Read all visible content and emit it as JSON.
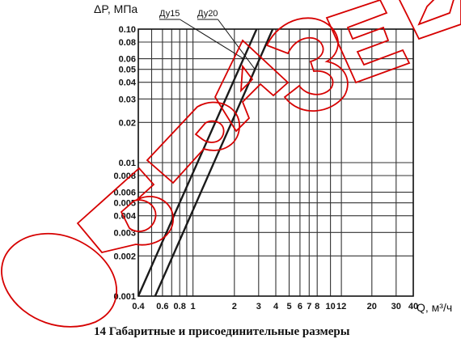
{
  "chart_data": {
    "type": "line",
    "title": "",
    "ylabel": "ΔP, МПа",
    "xlabel": "Q, м³/ч",
    "xscale": "log",
    "yscale": "log",
    "xlim": [
      0.4,
      40
    ],
    "ylim": [
      0.001,
      0.1
    ],
    "grid": true,
    "xticks": [
      {
        "v": 0.4,
        "label": "0.4"
      },
      {
        "v": 0.5,
        "label": ""
      },
      {
        "v": 0.6,
        "label": "0.6"
      },
      {
        "v": 0.7,
        "label": ""
      },
      {
        "v": 0.8,
        "label": "0.8"
      },
      {
        "v": 0.9,
        "label": ""
      },
      {
        "v": 1,
        "label": "1"
      },
      {
        "v": 2,
        "label": "2"
      },
      {
        "v": 3,
        "label": "3"
      },
      {
        "v": 4,
        "label": "4"
      },
      {
        "v": 5,
        "label": "5"
      },
      {
        "v": 6,
        "label": "6"
      },
      {
        "v": 7,
        "label": "7"
      },
      {
        "v": 8,
        "label": "8"
      },
      {
        "v": 10,
        "label": "10"
      },
      {
        "v": 12,
        "label": "12"
      },
      {
        "v": 20,
        "label": "20"
      },
      {
        "v": 30,
        "label": "30"
      },
      {
        "v": 40,
        "label": "40"
      }
    ],
    "yticks": [
      {
        "v": 0.001,
        "label": "0.001"
      },
      {
        "v": 0.002,
        "label": "0.002"
      },
      {
        "v": 0.003,
        "label": "0.003"
      },
      {
        "v": 0.004,
        "label": "0.004"
      },
      {
        "v": 0.005,
        "label": "0.005"
      },
      {
        "v": 0.006,
        "label": "0.006"
      },
      {
        "v": 0.008,
        "label": "0.008"
      },
      {
        "v": 0.01,
        "label": "0.01"
      },
      {
        "v": 0.02,
        "label": "0.02"
      },
      {
        "v": 0.03,
        "label": "0.03"
      },
      {
        "v": 0.04,
        "label": "0.04"
      },
      {
        "v": 0.05,
        "label": "0.05"
      },
      {
        "v": 0.06,
        "label": "0.06"
      },
      {
        "v": 0.08,
        "label": "0.08"
      },
      {
        "v": 0.1,
        "label": "0.10"
      }
    ],
    "series": [
      {
        "name": "Ду15",
        "x": [
          0.4,
          2.9
        ],
        "y": [
          0.001,
          0.1
        ]
      },
      {
        "name": "Ду20",
        "x": [
          0.53,
          3.8
        ],
        "y": [
          0.001,
          0.1
        ]
      }
    ]
  },
  "watermark": "ОБРАЗЕЦ",
  "caption": "14 Габаритные и присоединительные размеры"
}
